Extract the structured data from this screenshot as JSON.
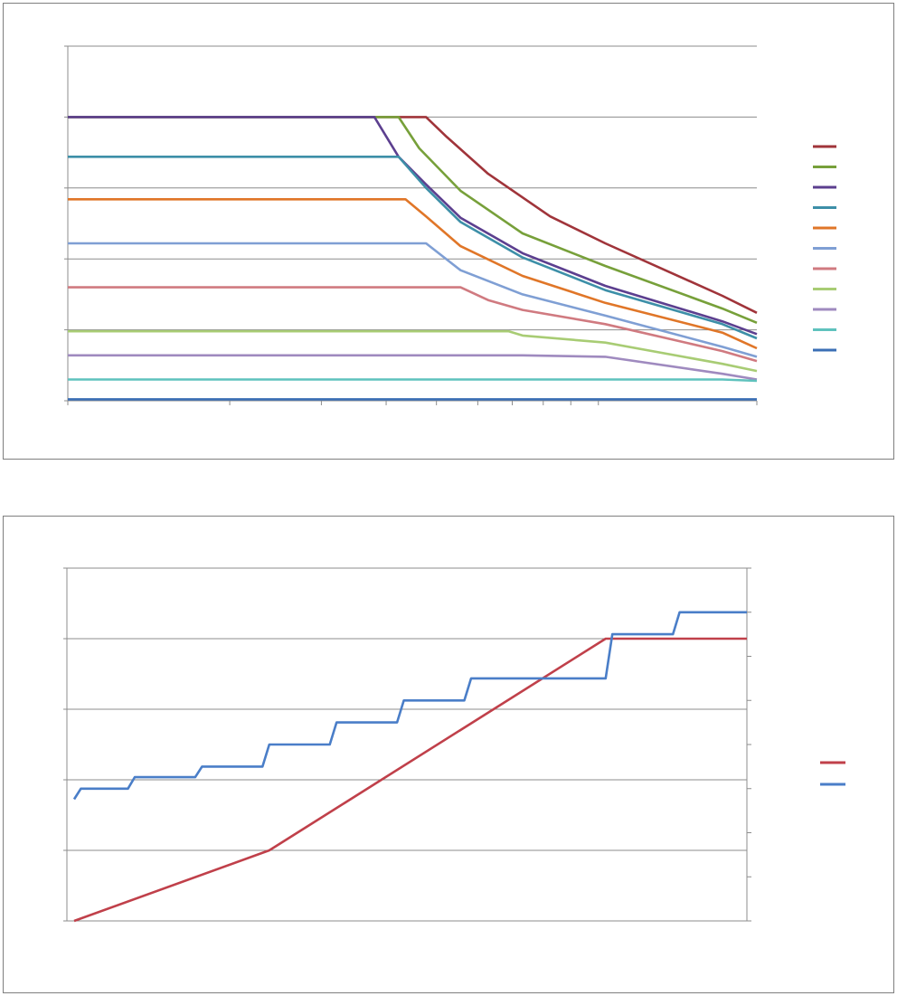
{
  "chart_data": [
    {
      "type": "line",
      "title": "",
      "xlabel": "",
      "ylabel": "",
      "xscale": "log",
      "grid": "horizontal",
      "legend": "right",
      "ylim": [
        0,
        5
      ],
      "series": [
        {
          "color": "#a0343a",
          "points": [
            [
              0.0,
              4.0
            ],
            [
              0.52,
              4.0
            ],
            [
              0.55,
              3.72
            ],
            [
              0.61,
              3.2
            ],
            [
              0.7,
              2.6
            ],
            [
              0.78,
              2.22
            ],
            [
              0.95,
              1.48
            ],
            [
              1.0,
              1.24
            ]
          ]
        },
        {
          "color": "#77a03a",
          "points": [
            [
              0.0,
              4.0
            ],
            [
              0.48,
              4.0
            ],
            [
              0.51,
              3.56
            ],
            [
              0.57,
              2.96
            ],
            [
              0.66,
              2.36
            ],
            [
              0.78,
              1.9
            ],
            [
              0.95,
              1.3
            ],
            [
              1.0,
              1.1
            ]
          ]
        },
        {
          "color": "#5c3f8f",
          "points": [
            [
              0.0,
              4.0
            ],
            [
              0.445,
              4.0
            ],
            [
              0.48,
              3.44
            ],
            [
              0.52,
              3.05
            ],
            [
              0.57,
              2.58
            ],
            [
              0.66,
              2.08
            ],
            [
              0.78,
              1.62
            ],
            [
              0.95,
              1.12
            ],
            [
              1.0,
              0.94
            ]
          ]
        },
        {
          "color": "#3d8fa8",
          "points": [
            [
              0.0,
              3.44
            ],
            [
              0.48,
              3.44
            ],
            [
              0.52,
              3.0
            ],
            [
              0.57,
              2.52
            ],
            [
              0.66,
              2.02
            ],
            [
              0.78,
              1.56
            ],
            [
              0.95,
              1.08
            ],
            [
              1.0,
              0.88
            ]
          ]
        },
        {
          "color": "#e07628",
          "points": [
            [
              0.0,
              2.84
            ],
            [
              0.49,
              2.84
            ],
            [
              0.52,
              2.6
            ],
            [
              0.57,
              2.18
            ],
            [
              0.66,
              1.76
            ],
            [
              0.78,
              1.38
            ],
            [
              0.95,
              0.96
            ],
            [
              1.0,
              0.74
            ]
          ]
        },
        {
          "color": "#7f9fd4",
          "points": [
            [
              0.0,
              2.22
            ],
            [
              0.52,
              2.22
            ],
            [
              0.57,
              1.84
            ],
            [
              0.66,
              1.5
            ],
            [
              0.78,
              1.2
            ],
            [
              0.95,
              0.76
            ],
            [
              1.0,
              0.62
            ]
          ]
        },
        {
          "color": "#d07a80",
          "points": [
            [
              0.0,
              1.6
            ],
            [
              0.57,
              1.6
            ],
            [
              0.61,
              1.42
            ],
            [
              0.66,
              1.28
            ],
            [
              0.78,
              1.08
            ],
            [
              0.95,
              0.7
            ],
            [
              1.0,
              0.56
            ]
          ]
        },
        {
          "color": "#a8cc74",
          "points": [
            [
              0.0,
              0.98
            ],
            [
              0.64,
              0.98
            ],
            [
              0.66,
              0.92
            ],
            [
              0.78,
              0.82
            ],
            [
              0.95,
              0.52
            ],
            [
              1.0,
              0.42
            ]
          ]
        },
        {
          "color": "#9f8abf",
          "points": [
            [
              0.0,
              0.64
            ],
            [
              0.66,
              0.64
            ],
            [
              0.78,
              0.62
            ],
            [
              0.95,
              0.38
            ],
            [
              1.0,
              0.3
            ]
          ]
        },
        {
          "color": "#5fc2bd",
          "points": [
            [
              0.0,
              0.3
            ],
            [
              0.95,
              0.3
            ],
            [
              1.0,
              0.28
            ]
          ]
        },
        {
          "color": "#3b6fb5",
          "points": [
            [
              0.0,
              0.02
            ],
            [
              1.0,
              0.02
            ]
          ]
        }
      ]
    },
    {
      "type": "line",
      "title": "",
      "xlabel": "",
      "ylabel": "",
      "grid": "horizontal",
      "legend": "right",
      "axes": "dual",
      "ylim": [
        0,
        5
      ],
      "y2lim": [
        0,
        8
      ],
      "series": [
        {
          "axis": "left",
          "color": "#c0404a",
          "points": [
            [
              0.0,
              0.0
            ],
            [
              0.29,
              1.0
            ],
            [
              0.79,
              4.0
            ],
            [
              1.0,
              4.0
            ]
          ]
        },
        {
          "axis": "right",
          "color": "#4a7ec8",
          "points": [
            [
              0.0,
              2.76
            ],
            [
              0.01,
              3.0
            ],
            [
              0.08,
              3.0
            ],
            [
              0.09,
              3.26
            ],
            [
              0.18,
              3.26
            ],
            [
              0.19,
              3.5
            ],
            [
              0.28,
              3.5
            ],
            [
              0.29,
              4.0
            ],
            [
              0.38,
              4.0
            ],
            [
              0.39,
              4.5
            ],
            [
              0.48,
              4.5
            ],
            [
              0.49,
              5.0
            ],
            [
              0.58,
              5.0
            ],
            [
              0.59,
              5.5
            ],
            [
              0.79,
              5.5
            ],
            [
              0.8,
              6.5
            ],
            [
              0.89,
              6.5
            ],
            [
              0.9,
              7.0
            ],
            [
              1.0,
              7.0
            ]
          ]
        }
      ]
    }
  ]
}
